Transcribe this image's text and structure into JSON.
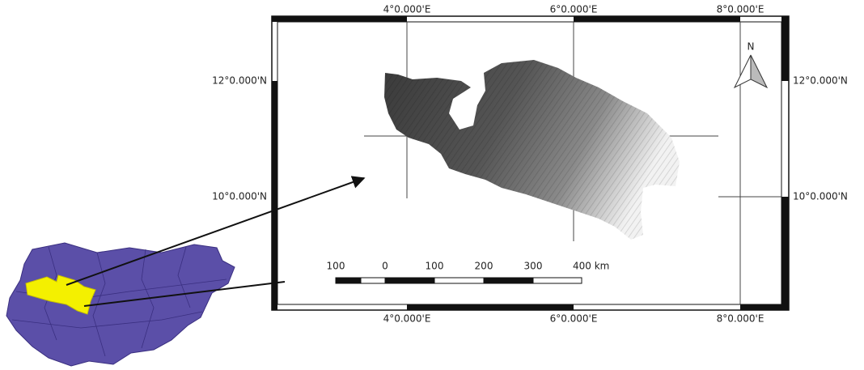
{
  "map": {
    "top_labels": [
      "4°0.000'E",
      "6°0.000'E",
      "8°0.000'E"
    ],
    "bottom_labels": [
      "4°0.000'E",
      "6°0.000'E",
      "8°0.000'E"
    ],
    "left_labels": [
      "12°0.000'N",
      "10°0.000'N"
    ],
    "right_labels": [
      "12°0.000'N",
      "10°0.000'N"
    ],
    "scale_bar_labels": [
      "100",
      "0",
      "100",
      "200",
      "300",
      "400 km"
    ],
    "north_arrow": "N"
  }
}
